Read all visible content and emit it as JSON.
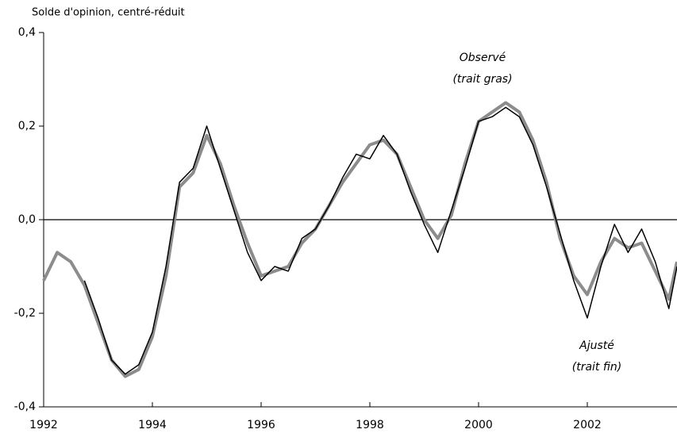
{
  "chart_data": {
    "type": "line",
    "y_axis_label": "Solde d'opinion, centré-réduit",
    "x": [
      1992,
      1992.25,
      1992.5,
      1992.75,
      1993,
      1993.25,
      1993.5,
      1993.75,
      1994,
      1994.25,
      1994.5,
      1994.75,
      1995,
      1995.25,
      1995.5,
      1995.75,
      1996,
      1996.25,
      1996.5,
      1996.75,
      1997,
      1997.25,
      1997.5,
      1997.75,
      1998,
      1998.25,
      1998.5,
      1998.75,
      1999,
      1999.25,
      1999.5,
      1999.75,
      2000,
      2000.25,
      2000.5,
      2000.75,
      2001,
      2001.25,
      2001.5,
      2001.75,
      2002,
      2002.25,
      2002.5,
      2002.75,
      2003,
      2003.25,
      2003.5,
      2003.65
    ],
    "series": [
      {
        "name": "Observé",
        "note": "(trait gras)",
        "color": "#8c8c8c",
        "values": [
          -0.13,
          -0.07,
          -0.09,
          -0.14,
          -0.22,
          -0.3,
          -0.335,
          -0.32,
          -0.25,
          -0.12,
          0.07,
          0.1,
          0.18,
          0.12,
          0.03,
          -0.05,
          -0.12,
          -0.11,
          -0.1,
          -0.05,
          -0.02,
          0.03,
          0.08,
          0.12,
          0.16,
          0.17,
          0.14,
          0.07,
          0.0,
          -0.04,
          0.01,
          0.12,
          0.21,
          0.23,
          0.25,
          0.23,
          0.17,
          0.08,
          -0.04,
          -0.12,
          -0.16,
          -0.09,
          -0.04,
          -0.06,
          -0.05,
          -0.11,
          -0.17,
          -0.09
        ]
      },
      {
        "name": "Ajusté",
        "note": "(trait fin)",
        "color": "#000000",
        "values": [
          null,
          null,
          null,
          -0.13,
          -0.21,
          -0.3,
          -0.33,
          -0.31,
          -0.24,
          -0.1,
          0.08,
          0.11,
          0.2,
          0.11,
          0.02,
          -0.07,
          -0.13,
          -0.1,
          -0.11,
          -0.04,
          -0.02,
          0.03,
          0.09,
          0.14,
          0.13,
          0.18,
          0.14,
          0.06,
          -0.01,
          -0.07,
          0.02,
          0.11,
          0.21,
          0.22,
          0.24,
          0.22,
          0.16,
          0.07,
          -0.03,
          -0.13,
          -0.21,
          -0.1,
          -0.01,
          -0.07,
          -0.02,
          -0.09,
          -0.19,
          -0.1
        ]
      }
    ],
    "xlim": [
      1992,
      2003.65
    ],
    "xticks": [
      1992,
      1994,
      1996,
      1998,
      2000,
      2002
    ],
    "ylim": [
      -0.4,
      0.4
    ],
    "yticks": [
      {
        "value": -0.4,
        "label": "-0,4"
      },
      {
        "value": -0.2,
        "label": "-0,2"
      },
      {
        "value": 0,
        "label": "0,0"
      },
      {
        "value": 0.2,
        "label": "0,2"
      },
      {
        "value": 0.4,
        "label": "0,4"
      }
    ]
  }
}
